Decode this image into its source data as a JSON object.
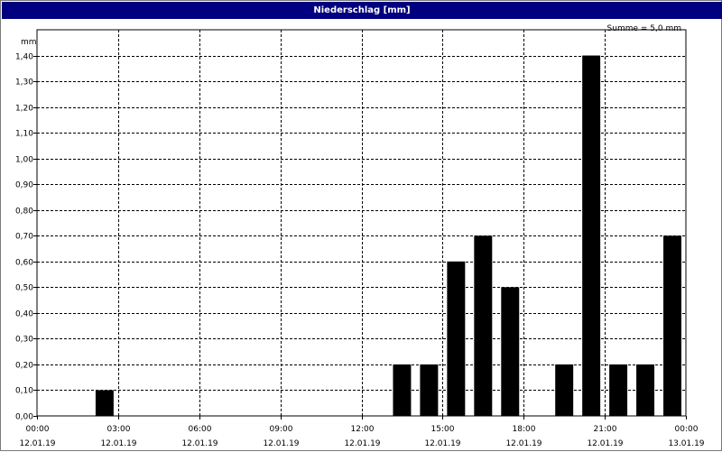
{
  "chart_data": {
    "type": "bar",
    "title": "Niederschlag [mm]",
    "annotation": "Summe = 5,0 mm",
    "ylabel": "mm",
    "ylim": [
      0,
      1.5
    ],
    "y_ticks": [
      "0,00",
      "0,10",
      "0,20",
      "0,30",
      "0,40",
      "0,50",
      "0,60",
      "0,70",
      "0,80",
      "0,90",
      "1,00",
      "1,10",
      "1,20",
      "1,30",
      "1,40"
    ],
    "x_ticks": [
      {
        "time": "00:00",
        "date": "12.01.19"
      },
      {
        "time": "03:00",
        "date": "12.01.19"
      },
      {
        "time": "06:00",
        "date": "12.01.19"
      },
      {
        "time": "09:00",
        "date": "12.01.19"
      },
      {
        "time": "12:00",
        "date": "12.01.19"
      },
      {
        "time": "15:00",
        "date": "12.01.19"
      },
      {
        "time": "18:00",
        "date": "12.01.19"
      },
      {
        "time": "21:00",
        "date": "12.01.19"
      },
      {
        "time": "00:00",
        "date": "13.01.19"
      }
    ],
    "x_range": [
      "12.01.19 00:00",
      "13.01.19 00:00"
    ],
    "bars": [
      {
        "hour_end": "12.01.19 03:00",
        "value": 0.1
      },
      {
        "hour_end": "12.01.19 14:00",
        "value": 0.2
      },
      {
        "hour_end": "12.01.19 15:00",
        "value": 0.2
      },
      {
        "hour_end": "12.01.19 16:00",
        "value": 0.6
      },
      {
        "hour_end": "12.01.19 17:00",
        "value": 0.7
      },
      {
        "hour_end": "12.01.19 18:00",
        "value": 0.5
      },
      {
        "hour_end": "12.01.19 20:00",
        "value": 0.2
      },
      {
        "hour_end": "12.01.19 21:00",
        "value": 1.4
      },
      {
        "hour_end": "12.01.19 22:00",
        "value": 0.2
      },
      {
        "hour_end": "12.01.19 23:00",
        "value": 0.2
      },
      {
        "hour_end": "13.01.19 00:00",
        "value": 0.7
      }
    ],
    "grid": true,
    "bar_color": "#000000"
  }
}
